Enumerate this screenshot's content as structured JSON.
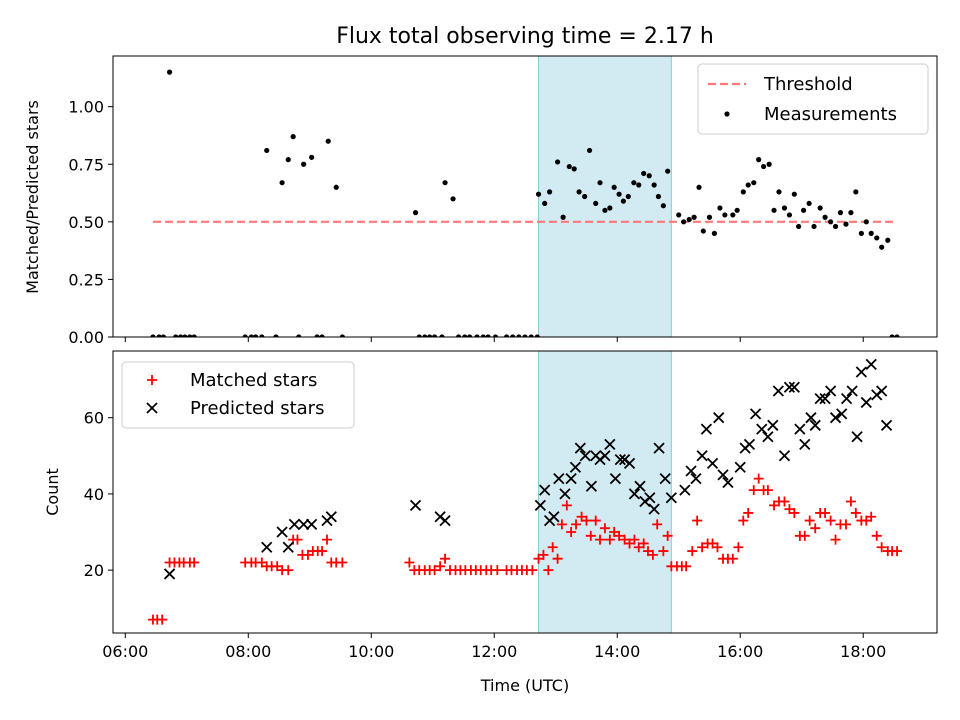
{
  "chart_data": [
    {
      "type": "scatter",
      "title": "Flux total observing time = 2.17 h",
      "xlabel": "",
      "ylabel": "Matched/Predicted stars",
      "xlim": [
        5.8,
        19.2
      ],
      "ylim": [
        0.0,
        1.22
      ],
      "yticks": [
        0.0,
        0.25,
        0.5,
        0.75,
        1.0
      ],
      "ytick_labels": [
        "0.00",
        "0.25",
        "0.50",
        "0.75",
        "1.00"
      ],
      "highlight_span": {
        "x": [
          12.72,
          14.88
        ],
        "color": "#add8e6"
      },
      "legend": {
        "position": "top-right"
      },
      "threshold": {
        "name": "Threshold",
        "value": 0.5,
        "x": [
          6.45,
          18.55
        ],
        "color": "#ff7777"
      },
      "series": [
        {
          "name": "Measurements",
          "color": "#000000",
          "marker": "dot",
          "x": [
            6.45,
            6.55,
            6.62,
            6.72,
            6.82,
            6.9,
            6.97,
            7.05,
            7.12,
            7.95,
            8.05,
            8.12,
            8.22,
            8.3,
            8.45,
            8.55,
            8.65,
            8.73,
            8.82,
            8.9,
            9.03,
            9.12,
            9.2,
            9.3,
            9.43,
            9.53,
            10.72,
            10.78,
            10.87,
            10.95,
            11.03,
            11.15,
            11.2,
            11.33,
            11.42,
            11.52,
            11.6,
            11.72,
            11.82,
            11.9,
            12.02,
            12.2,
            12.3,
            12.4,
            12.5,
            12.6,
            12.7,
            12.72,
            12.82,
            12.9,
            13.03,
            13.12,
            13.22,
            13.3,
            13.38,
            13.47,
            13.55,
            13.65,
            13.72,
            13.8,
            13.88,
            13.95,
            14.03,
            14.1,
            14.18,
            14.27,
            14.35,
            14.43,
            14.52,
            14.6,
            14.67,
            14.75,
            14.82,
            15.0,
            15.08,
            15.17,
            15.25,
            15.33,
            15.4,
            15.5,
            15.58,
            15.67,
            15.75,
            15.88,
            15.95,
            16.05,
            16.13,
            16.22,
            16.3,
            16.38,
            16.47,
            16.55,
            16.63,
            16.72,
            16.8,
            16.88,
            16.95,
            17.03,
            17.12,
            17.2,
            17.3,
            17.38,
            17.47,
            17.55,
            17.63,
            17.72,
            17.8,
            17.88,
            17.97,
            18.05,
            18.13,
            18.22,
            18.3,
            18.4,
            18.47,
            18.55
          ],
          "y": [
            0.0,
            0.0,
            0.0,
            1.15,
            0.0,
            0.0,
            0.0,
            0.0,
            0.0,
            0.0,
            0.0,
            0.0,
            0.0,
            0.81,
            0.0,
            0.67,
            0.77,
            0.87,
            0.0,
            0.75,
            0.78,
            0.0,
            0.0,
            0.85,
            0.65,
            0.0,
            0.54,
            0.0,
            0.0,
            0.0,
            0.0,
            0.0,
            0.67,
            0.6,
            0.0,
            0.0,
            0.0,
            0.0,
            0.0,
            0.0,
            0.0,
            0.0,
            0.0,
            0.0,
            0.0,
            0.0,
            0.0,
            0.62,
            0.58,
            0.63,
            0.76,
            0.52,
            0.74,
            0.73,
            0.63,
            0.61,
            0.81,
            0.58,
            0.67,
            0.55,
            0.56,
            0.65,
            0.62,
            0.59,
            0.61,
            0.67,
            0.66,
            0.71,
            0.7,
            0.66,
            0.61,
            0.57,
            0.72,
            0.53,
            0.5,
            0.51,
            0.52,
            0.65,
            0.46,
            0.52,
            0.45,
            0.56,
            0.53,
            0.53,
            0.55,
            0.63,
            0.66,
            0.67,
            0.77,
            0.74,
            0.75,
            0.55,
            0.63,
            0.56,
            0.53,
            0.62,
            0.48,
            0.55,
            0.58,
            0.48,
            0.56,
            0.52,
            0.5,
            0.48,
            0.54,
            0.49,
            0.54,
            0.63,
            0.45,
            0.5,
            0.45,
            0.43,
            0.39,
            0.42,
            0.0,
            0.0
          ]
        }
      ]
    },
    {
      "type": "scatter",
      "title": "",
      "xlabel": "Time (UTC)",
      "ylabel": "Count",
      "xlim": [
        5.8,
        19.2
      ],
      "ylim": [
        3.5,
        77.5
      ],
      "yticks": [
        20,
        40,
        60
      ],
      "ytick_labels": [
        "20",
        "40",
        "60"
      ],
      "xticks": [
        6,
        8,
        10,
        12,
        14,
        16,
        18
      ],
      "xtick_labels": [
        "06:00",
        "08:00",
        "10:00",
        "12:00",
        "14:00",
        "16:00",
        "18:00"
      ],
      "highlight_span": {
        "x": [
          12.72,
          14.88
        ],
        "color": "#add8e6"
      },
      "legend": {
        "position": "top-left"
      },
      "series": [
        {
          "name": "Matched stars",
          "color": "#ff0000",
          "marker": "plus",
          "x": [
            6.45,
            6.52,
            6.6,
            6.72,
            6.8,
            6.88,
            6.95,
            7.05,
            7.12,
            7.95,
            8.05,
            8.12,
            8.22,
            8.3,
            8.38,
            8.47,
            8.55,
            8.65,
            8.73,
            8.8,
            8.88,
            8.97,
            9.05,
            9.13,
            9.2,
            9.28,
            9.35,
            9.43,
            9.53,
            10.62,
            10.7,
            10.78,
            10.87,
            10.95,
            11.03,
            11.12,
            11.2,
            11.28,
            11.37,
            11.45,
            11.53,
            11.62,
            11.7,
            11.78,
            11.87,
            11.95,
            12.05,
            12.2,
            12.28,
            12.37,
            12.45,
            12.53,
            12.62,
            12.72,
            12.8,
            12.88,
            12.95,
            13.03,
            13.1,
            13.18,
            13.25,
            13.33,
            13.42,
            13.5,
            13.57,
            13.65,
            13.72,
            13.8,
            13.88,
            13.95,
            14.03,
            14.12,
            14.2,
            14.28,
            14.35,
            14.43,
            14.5,
            14.58,
            14.65,
            14.75,
            14.82,
            14.88,
            14.97,
            15.05,
            15.12,
            15.22,
            15.3,
            15.38,
            15.47,
            15.55,
            15.63,
            15.72,
            15.8,
            15.88,
            15.97,
            16.05,
            16.13,
            16.22,
            16.3,
            16.38,
            16.45,
            16.55,
            16.63,
            16.72,
            16.8,
            16.88,
            16.97,
            17.05,
            17.13,
            17.22,
            17.3,
            17.38,
            17.47,
            17.55,
            17.63,
            17.72,
            17.8,
            17.88,
            17.97,
            18.05,
            18.13,
            18.22,
            18.3,
            18.4,
            18.47,
            18.55
          ],
          "y": [
            7,
            7,
            7,
            22,
            22,
            22,
            22,
            22,
            22,
            22,
            22,
            22,
            22,
            21,
            21,
            21,
            20,
            20,
            28,
            28,
            24,
            24,
            25,
            25,
            25,
            28,
            22,
            22,
            22,
            22,
            20,
            20,
            20,
            20,
            20,
            21,
            23,
            20,
            20,
            20,
            20,
            20,
            20,
            20,
            20,
            20,
            20,
            20,
            20,
            20,
            20,
            20,
            20,
            23,
            24,
            20,
            26,
            23,
            32,
            37,
            30,
            32,
            34,
            33,
            29,
            33,
            28,
            31,
            28,
            30,
            29,
            28,
            27,
            28,
            26,
            27,
            25,
            24,
            32,
            25,
            29,
            21,
            21,
            21,
            21,
            25,
            33,
            26,
            27,
            27,
            26,
            23,
            23,
            23,
            26,
            33,
            35,
            41,
            44,
            41,
            41,
            37,
            38,
            38,
            36,
            35,
            29,
            29,
            33,
            31,
            35,
            35,
            33,
            28,
            32,
            32,
            38,
            35,
            33,
            33,
            34,
            29,
            26,
            25,
            25,
            25
          ]
        },
        {
          "name": "Predicted stars",
          "color": "#000000",
          "marker": "x",
          "x": [
            6.72,
            8.3,
            8.55,
            8.65,
            8.75,
            8.9,
            9.03,
            9.28,
            9.35,
            10.72,
            11.12,
            11.2,
            12.75,
            12.82,
            12.9,
            12.97,
            13.05,
            13.15,
            13.25,
            13.32,
            13.4,
            13.48,
            13.58,
            13.65,
            13.72,
            13.8,
            13.88,
            13.97,
            14.05,
            14.12,
            14.2,
            14.28,
            14.37,
            14.45,
            14.53,
            14.6,
            14.68,
            14.78,
            14.88,
            15.1,
            15.2,
            15.28,
            15.38,
            15.45,
            15.55,
            15.65,
            15.72,
            15.8,
            16.0,
            16.08,
            16.15,
            16.25,
            16.35,
            16.45,
            16.53,
            16.62,
            16.72,
            16.8,
            16.88,
            16.97,
            17.05,
            17.15,
            17.22,
            17.3,
            17.38,
            17.47,
            17.55,
            17.65,
            17.73,
            17.82,
            17.9,
            17.97,
            18.05,
            18.13,
            18.22,
            18.3,
            18.38
          ],
          "y": [
            19,
            26,
            30,
            26,
            32,
            32,
            32,
            33,
            34,
            37,
            34,
            33,
            37,
            41,
            33,
            34,
            44,
            40,
            44,
            47,
            52,
            50,
            42,
            50,
            49,
            50,
            53,
            44,
            49,
            49,
            48,
            40,
            42,
            38,
            39,
            36,
            52,
            44,
            39,
            41,
            46,
            44,
            50,
            57,
            48,
            60,
            45,
            43,
            47,
            52,
            53,
            61,
            57,
            55,
            58,
            67,
            50,
            68,
            68,
            57,
            53,
            60,
            58,
            65,
            65,
            67,
            60,
            61,
            65,
            67,
            55,
            72,
            64,
            74,
            66,
            67,
            58
          ]
        }
      ]
    }
  ]
}
